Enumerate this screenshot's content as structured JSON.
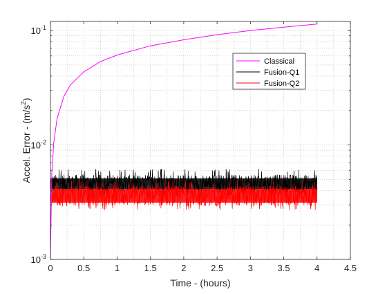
{
  "chart_data": {
    "type": "line",
    "xlabel": "Time - (hours)",
    "ylabel": "Accel. Error - (m/s²)",
    "ylabel_base": "Accel. Error - (m/s",
    "ylabel_sup": "2",
    "ylabel_close": ")",
    "xlim": [
      0,
      4.5
    ],
    "ylim": [
      0.001,
      0.12
    ],
    "yscale": "log",
    "grid": "on (major and minor, dotted)",
    "legend_position": "upper-right inside",
    "x_ticks": [
      "0",
      "0.5",
      "1",
      "1.5",
      "2",
      "2.5",
      "3",
      "3.5",
      "4",
      "4.5"
    ],
    "x_tick_values": [
      0,
      0.5,
      1,
      1.5,
      2,
      2.5,
      3,
      3.5,
      4,
      4.5
    ],
    "y_ticks": [
      {
        "value": 0.001,
        "base": "10",
        "exp": "-3"
      },
      {
        "value": 0.01,
        "base": "10",
        "exp": "-2"
      },
      {
        "value": 0.1,
        "base": "10",
        "exp": "-1"
      }
    ],
    "series": [
      {
        "name": "Classical",
        "color": "#ff00ff",
        "x": [
          0,
          0.02,
          0.05,
          0.1,
          0.2,
          0.3,
          0.5,
          0.75,
          1,
          1.5,
          2,
          2.5,
          3,
          3.5,
          4
        ],
        "y": [
          0.001,
          0.0055,
          0.0105,
          0.017,
          0.0265,
          0.0335,
          0.0435,
          0.0535,
          0.061,
          0.0735,
          0.083,
          0.092,
          0.1,
          0.107,
          0.114
        ]
      },
      {
        "name": "Fusion-Q1",
        "color": "#000000",
        "x": [
          0,
          4
        ],
        "y_band": [
          0.0038,
          0.0055
        ],
        "y_spikes": [
          0.0035,
          0.0062
        ]
      },
      {
        "name": "Fusion-Q2",
        "color": "#ff0000",
        "x": [
          0,
          4
        ],
        "y_band": [
          0.0029,
          0.0044
        ],
        "y_spikes": [
          0.0027,
          0.0049
        ]
      }
    ]
  }
}
